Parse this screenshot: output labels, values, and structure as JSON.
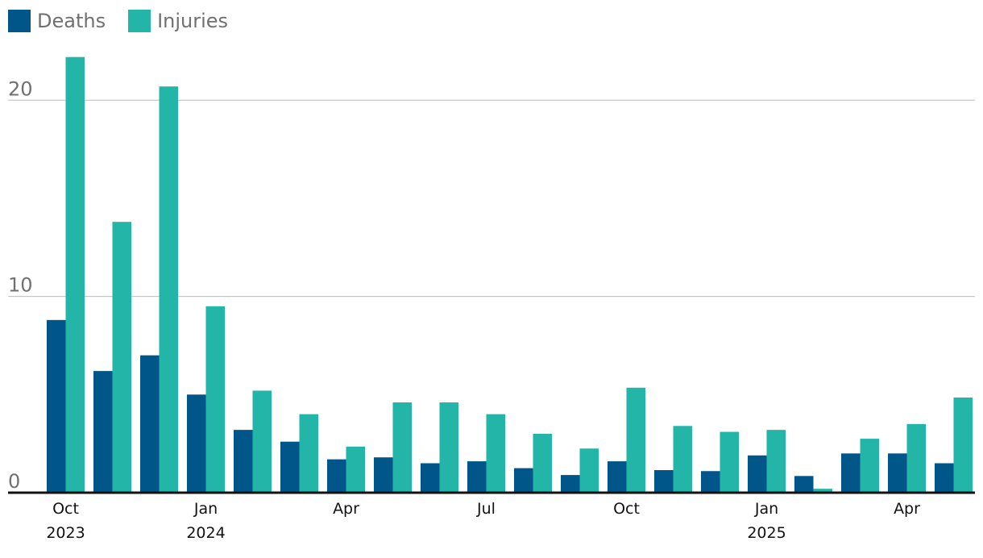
{
  "legend": {
    "deaths_label": "Deaths",
    "injuries_label": "Injuries"
  },
  "colors": {
    "deaths": "#005689",
    "injuries": "#22b5a8",
    "grid": "#bdbdbd",
    "axis": "#121212",
    "tick_text": "#707070",
    "month_text": "#121212"
  },
  "chart_data": {
    "type": "bar",
    "title": "",
    "xlabel": "",
    "ylabel": "",
    "ylim": [
      0,
      22.6
    ],
    "yticks": [
      0,
      10,
      20
    ],
    "grid": true,
    "legend_position": "top-left",
    "categories": [
      "Oct 2023",
      "Nov 2023",
      "Dec 2023",
      "Jan 2024",
      "Feb 2024",
      "Mar 2024",
      "Apr 2024",
      "May 2024",
      "Jun 2024",
      "Jul 2024",
      "Aug 2024",
      "Sep 2024",
      "Oct 2024",
      "Nov 2024",
      "Dec 2024",
      "Jan 2025",
      "Feb 2025",
      "Mar 2025",
      "Apr 2025",
      "May 2025"
    ],
    "series": [
      {
        "name": "Deaths",
        "values": [
          8.8,
          6.2,
          7.0,
          5.0,
          3.2,
          2.6,
          1.7,
          1.8,
          1.5,
          1.6,
          1.25,
          0.9,
          1.6,
          1.15,
          1.1,
          1.9,
          0.85,
          2.0,
          2.0,
          1.5
        ]
      },
      {
        "name": "Injuries",
        "values": [
          22.2,
          13.8,
          20.7,
          9.5,
          5.2,
          4.0,
          2.35,
          4.6,
          4.6,
          4.0,
          3.0,
          2.25,
          5.35,
          3.4,
          3.1,
          3.2,
          0.2,
          2.75,
          3.5,
          4.85
        ]
      }
    ],
    "x_tick_labels": [
      {
        "index": 0,
        "month": "Oct",
        "year": "2023"
      },
      {
        "index": 3,
        "month": "Jan",
        "year": "2024"
      },
      {
        "index": 6,
        "month": "Apr",
        "year": ""
      },
      {
        "index": 9,
        "month": "Jul",
        "year": ""
      },
      {
        "index": 12,
        "month": "Oct",
        "year": ""
      },
      {
        "index": 15,
        "month": "Jan",
        "year": "2025"
      },
      {
        "index": 18,
        "month": "Apr",
        "year": ""
      }
    ]
  }
}
